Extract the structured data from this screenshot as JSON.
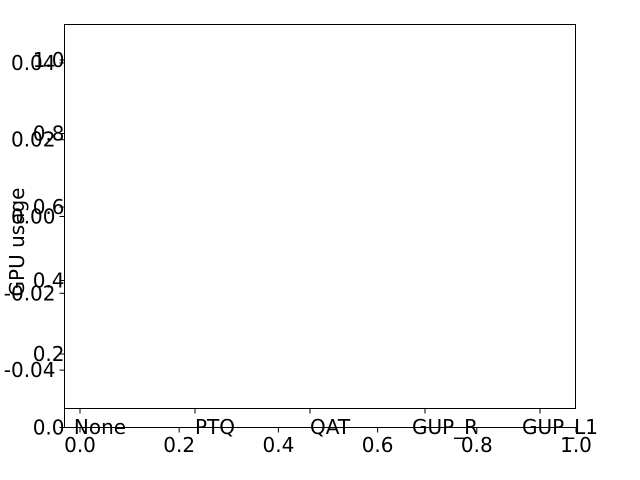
{
  "chart_data": [
    {
      "type": "bar",
      "categories": [
        "None",
        "PTQ",
        "QAT",
        "GUP_R",
        "GUP_L1"
      ],
      "series": [],
      "ylabel": "GPU usage",
      "ylim": [
        -0.05,
        0.05
      ],
      "yticks": [
        "-0.04",
        "-0.02",
        "0.00",
        "0.02",
        "0.04"
      ],
      "grid": false
    },
    {
      "type": "line",
      "xlim": [
        0.0,
        1.0
      ],
      "ylim": [
        0.0,
        1.0
      ],
      "xticks": [
        "0.0",
        "0.2",
        "0.4",
        "0.6",
        "0.8",
        "1.0"
      ],
      "yticks": [
        "0.0",
        "0.2",
        "0.4",
        "0.6",
        "0.8",
        "1.0"
      ],
      "grid": false
    }
  ]
}
